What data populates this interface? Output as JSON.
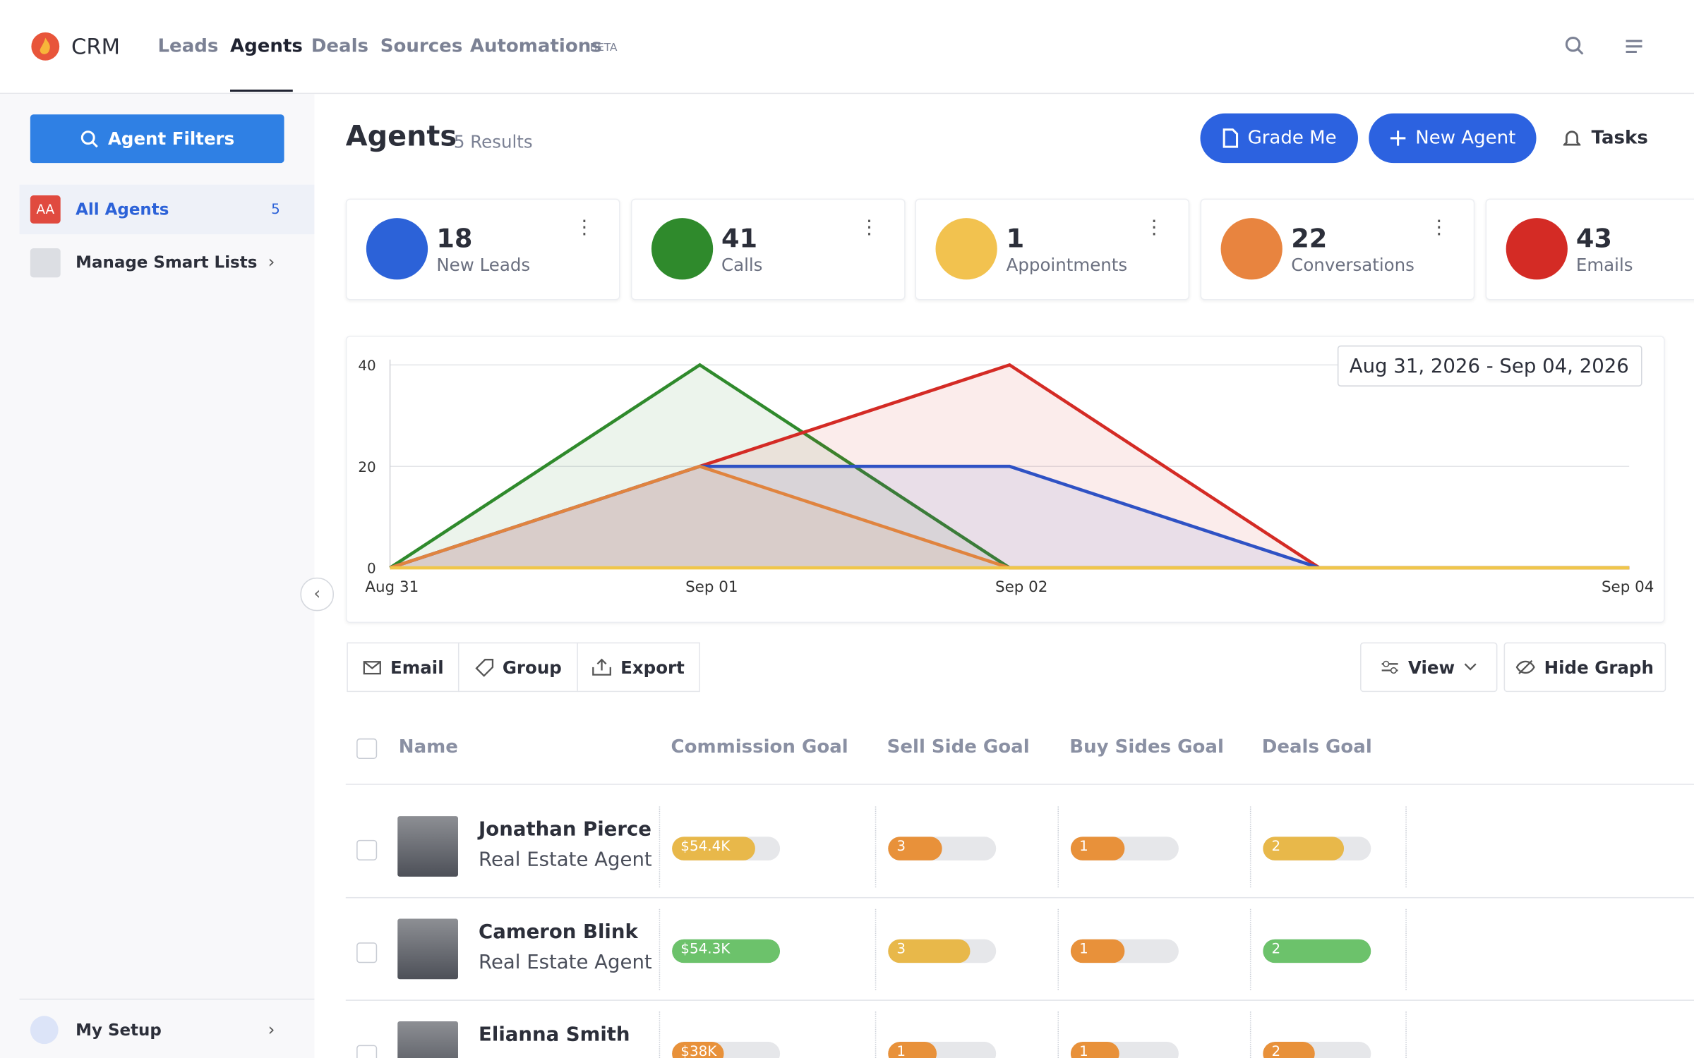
{
  "nav": {
    "brand": "CRM",
    "links": [
      "Leads",
      "Agents",
      "Deals",
      "Sources",
      "Automations"
    ],
    "beta": "BETA"
  },
  "sidebar": {
    "filter_button": "Agent Filters",
    "all_badge": "AA",
    "all_label": "All Agents",
    "all_count": "5",
    "smart_lists": "Manage Smart Lists",
    "setup": "My Setup"
  },
  "header": {
    "title": "Agents",
    "results": "5 Results",
    "grade": "Grade Me",
    "new_agent": "New Agent",
    "tasks": "Tasks"
  },
  "stats": [
    {
      "value": "18",
      "label": "New Leads",
      "color": "#2c62d8"
    },
    {
      "value": "41",
      "label": "Calls",
      "color": "#2f8a2c"
    },
    {
      "value": "1",
      "label": "Appointments",
      "color": "#f2c24f"
    },
    {
      "value": "22",
      "label": "Conversations",
      "color": "#e8843f"
    },
    {
      "value": "43",
      "label": "Emails",
      "color": "#d42b25"
    }
  ],
  "chart_data": {
    "type": "area",
    "date_range": "Aug 31, 2026 - Sep 04, 2026",
    "categories": [
      "Aug 31",
      "Sep 01",
      "Sep 02",
      null,
      "Sep 04"
    ],
    "series": [
      {
        "color": "#2f8a2c",
        "values": [
          0,
          40,
          0,
          0,
          0
        ]
      },
      {
        "color": "#d42b25",
        "values": [
          0,
          20,
          40,
          0,
          0
        ]
      },
      {
        "color": "#2f52c4",
        "values": [
          0,
          20,
          20,
          0,
          0
        ]
      },
      {
        "color": "#e0843f",
        "values": [
          0,
          20,
          0,
          0,
          0
        ]
      },
      {
        "color": "#f0c64a",
        "values": [
          0,
          0,
          0,
          0,
          0
        ]
      }
    ],
    "ylim": [
      0,
      40
    ],
    "yticks": [
      0,
      20,
      40
    ],
    "grid": true
  },
  "toolbar": {
    "email": "Email",
    "group": "Group",
    "export": "Export",
    "view": "View",
    "hide_graph": "Hide Graph"
  },
  "table": {
    "columns": [
      "Name",
      "Commission Goal",
      "Sell Side Goal",
      "Buy Sides Goal",
      "Deals Goal"
    ],
    "rows": [
      {
        "name": "Jonathan Pierce",
        "role": "Real Estate Agent",
        "goals": [
          {
            "label": "$54.4K",
            "percent": 77,
            "color": "#e8b84a"
          },
          {
            "label": "3",
            "percent": 50,
            "color": "#e8913a"
          },
          {
            "label": "1",
            "percent": 50,
            "color": "#e8913a"
          },
          {
            "label": "2",
            "percent": 75,
            "color": "#e8b84a"
          }
        ]
      },
      {
        "name": "Cameron Blink",
        "role": "Real Estate Agent",
        "goals": [
          {
            "label": "$54.3K",
            "percent": 100,
            "color": "#6cc26b"
          },
          {
            "label": "3",
            "percent": 76,
            "color": "#e8b84a"
          },
          {
            "label": "1",
            "percent": 50,
            "color": "#e8913a"
          },
          {
            "label": "2",
            "percent": 100,
            "color": "#6cc26b"
          }
        ]
      },
      {
        "name": "Elianna Smith",
        "goals": [
          {
            "label": "$38K",
            "percent": 48,
            "color": "#e8913a"
          },
          {
            "label": "1",
            "percent": 45,
            "color": "#e8913a"
          },
          {
            "label": "1",
            "percent": 45,
            "color": "#e8913a"
          },
          {
            "label": "2",
            "percent": 48,
            "color": "#e8913a"
          }
        ]
      }
    ]
  }
}
